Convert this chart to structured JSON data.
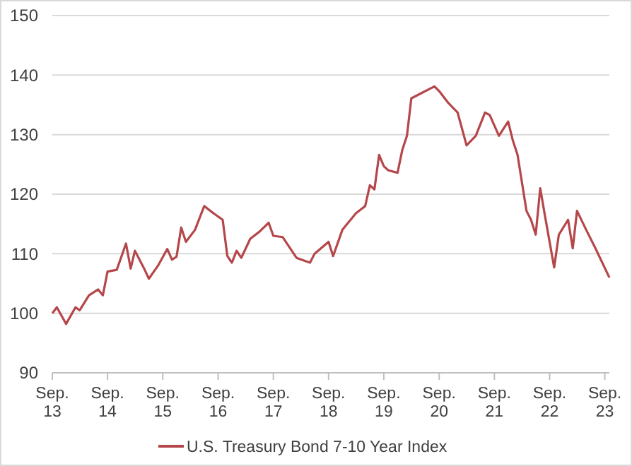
{
  "chart_data": {
    "type": "line",
    "x": [
      "2013-09",
      "2013-10",
      "2013-12",
      "2014-02",
      "2014-03",
      "2014-05",
      "2014-07",
      "2014-08",
      "2014-09",
      "2014-11",
      "2015-01",
      "2015-02",
      "2015-03",
      "2015-05",
      "2015-06",
      "2015-08",
      "2015-10",
      "2015-11",
      "2015-12",
      "2016-01",
      "2016-02",
      "2016-04",
      "2016-06",
      "2016-08",
      "2016-10",
      "2016-11",
      "2016-12",
      "2017-01",
      "2017-02",
      "2017-04",
      "2017-06",
      "2017-08",
      "2017-09",
      "2017-11",
      "2018-02",
      "2018-05",
      "2018-06",
      "2018-09",
      "2018-10",
      "2018-12",
      "2019-03",
      "2019-05",
      "2019-06",
      "2019-07",
      "2019-08",
      "2019-09",
      "2019-10",
      "2019-12",
      "2020-01",
      "2020-02",
      "2020-03",
      "2020-05",
      "2020-08",
      "2020-09",
      "2020-11",
      "2021-01",
      "2021-03",
      "2021-05",
      "2021-07",
      "2021-08",
      "2021-10",
      "2021-12",
      "2022-01",
      "2022-02",
      "2022-04",
      "2022-05",
      "2022-06",
      "2022-07",
      "2022-08",
      "2022-10",
      "2022-11",
      "2023-01",
      "2023-02",
      "2023-03",
      "2023-05",
      "2023-07",
      "2023-10"
    ],
    "series": [
      {
        "name": "U.S. Treasury Bond 7-10 Year Index",
        "color": "#b5474b",
        "values": [
          100,
          101,
          98.2,
          101,
          100.5,
          103,
          104,
          103,
          107,
          107.3,
          111.7,
          107.5,
          110.5,
          107.5,
          105.8,
          108,
          110.8,
          109,
          109.5,
          114.4,
          112,
          114,
          118,
          116.8,
          115.7,
          109.6,
          108.5,
          110.5,
          109.3,
          112.5,
          113.7,
          115.2,
          113,
          112.8,
          109.3,
          108.5,
          110,
          112,
          109.6,
          114,
          116.8,
          118,
          121.5,
          120.8,
          126.6,
          124.7,
          124,
          123.6,
          127.4,
          129.8,
          136.1,
          136.9,
          138.1,
          137.3,
          135.3,
          133.7,
          128.2,
          129.8,
          133.7,
          133.3,
          129.8,
          132.2,
          129,
          126.6,
          117.2,
          115.7,
          113.2,
          121,
          116.4,
          107.7,
          113.2,
          115.7,
          110.9,
          117.2,
          114,
          110.9,
          106
        ]
      }
    ],
    "xlim": [
      "2013-09",
      "2023-10"
    ],
    "xticks": [
      {
        "value": "2013-09",
        "label": "Sep. 13"
      },
      {
        "value": "2014-09",
        "label": "Sep. 14"
      },
      {
        "value": "2015-09",
        "label": "Sep. 15"
      },
      {
        "value": "2016-09",
        "label": "Sep. 16"
      },
      {
        "value": "2017-09",
        "label": "Sep. 17"
      },
      {
        "value": "2018-09",
        "label": "Sep. 18"
      },
      {
        "value": "2019-09",
        "label": "Sep. 19"
      },
      {
        "value": "2020-09",
        "label": "Sep. 20"
      },
      {
        "value": "2021-09",
        "label": "Sep. 21"
      },
      {
        "value": "2022-09",
        "label": "Sep. 22"
      },
      {
        "value": "2023-09",
        "label": "Sep. 23"
      }
    ],
    "ylim": [
      90,
      150
    ],
    "yticks": [
      90,
      100,
      110,
      120,
      130,
      140,
      150
    ],
    "grid": "y",
    "legend": "bottom",
    "marker": "none",
    "line_style": "solid"
  }
}
